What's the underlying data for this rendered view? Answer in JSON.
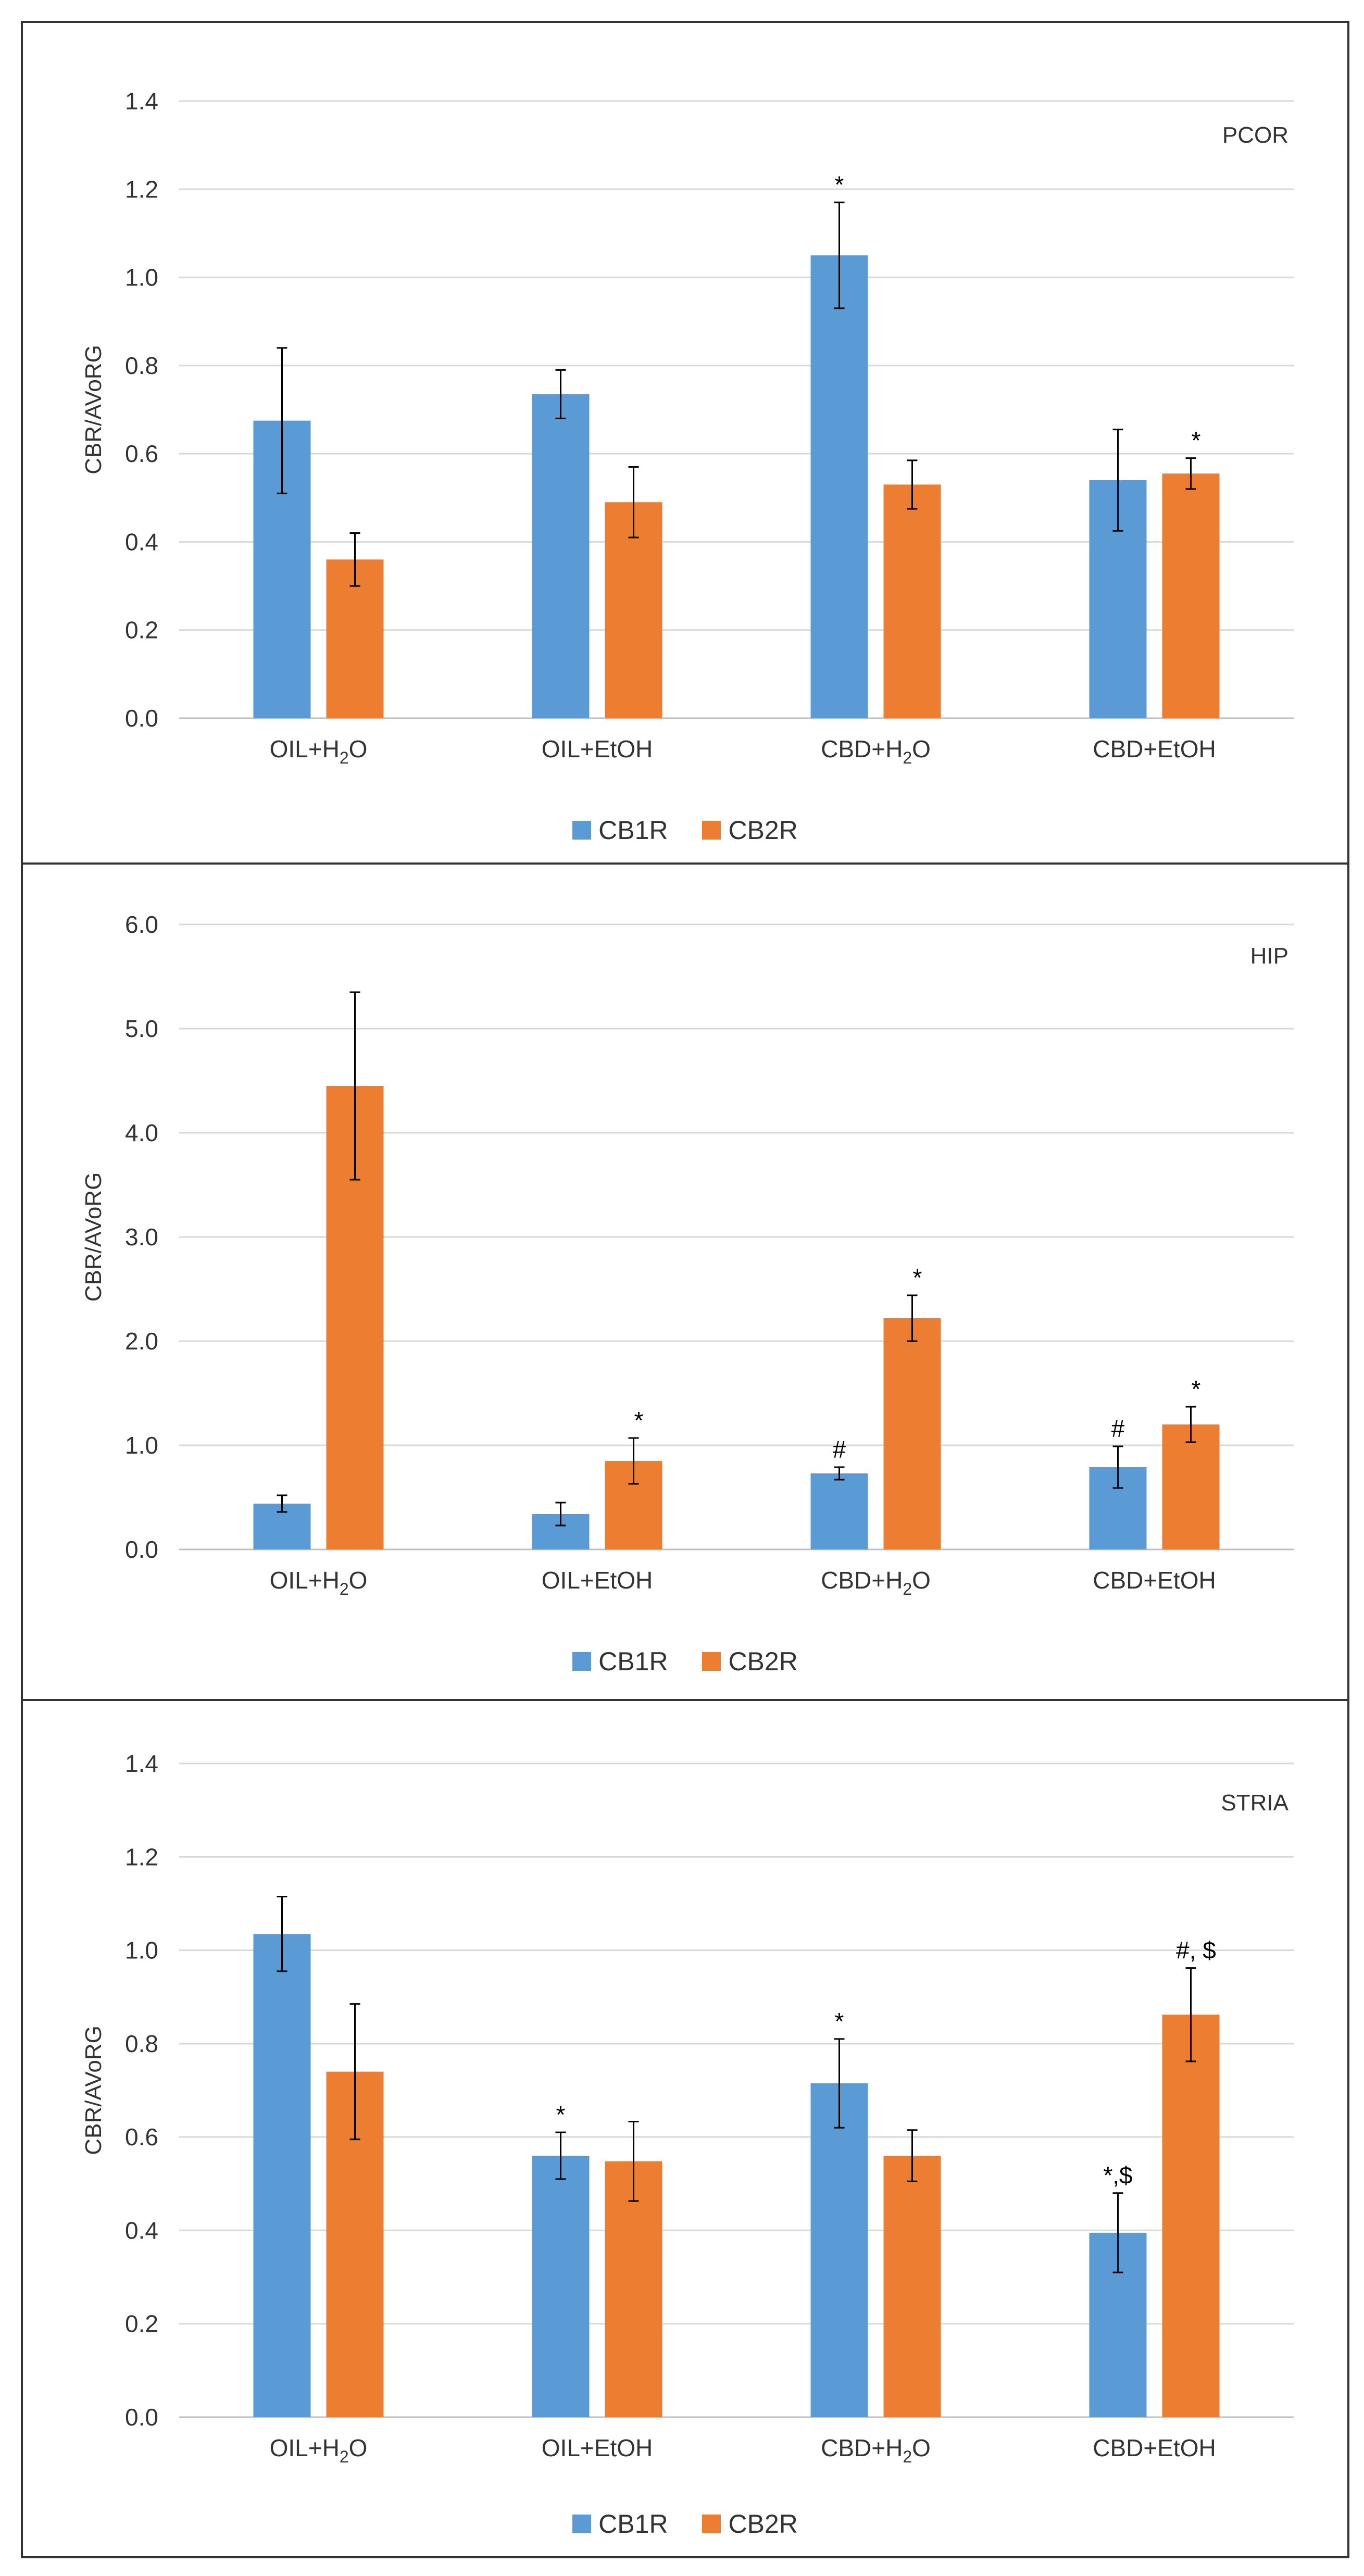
{
  "chart_data": [
    {
      "type": "bar",
      "title": "PCOR",
      "ylabel": "CBR/AVoRG",
      "xlabel": "",
      "ylim": [
        0,
        1.4
      ],
      "ytick_step": 0.2,
      "yticks": [
        "0.0",
        "0.2",
        "0.4",
        "0.6",
        "0.8",
        "1.0",
        "1.2",
        "1.4"
      ],
      "categories": [
        {
          "base": "OIL+H",
          "sub": "2",
          "tail": "O"
        },
        {
          "base": "OIL+EtOH",
          "sub": "",
          "tail": ""
        },
        {
          "base": "CBD+H",
          "sub": "2",
          "tail": "O"
        },
        {
          "base": "CBD+EtOH",
          "sub": "",
          "tail": ""
        }
      ],
      "series": [
        {
          "name": "CB1R",
          "color": "#5b9bd5",
          "values": [
            0.675,
            0.735,
            1.05,
            0.54
          ],
          "errors": [
            0.165,
            0.055,
            0.12,
            0.115
          ],
          "annotations": [
            "",
            "",
            "*",
            ""
          ]
        },
        {
          "name": "CB2R",
          "color": "#ed7d31",
          "values": [
            0.36,
            0.49,
            0.53,
            0.555
          ],
          "errors": [
            0.06,
            0.08,
            0.055,
            0.035
          ],
          "annotations": [
            "",
            "",
            "",
            "*"
          ]
        }
      ],
      "grid": true,
      "legend": "bottom"
    },
    {
      "type": "bar",
      "title": "HIP",
      "ylabel": "CBR/AVoRG",
      "xlabel": "",
      "ylim": [
        0,
        6.0
      ],
      "ytick_step": 1.0,
      "yticks": [
        "0.0",
        "1.0",
        "2.0",
        "3.0",
        "4.0",
        "5.0",
        "6.0"
      ],
      "categories": [
        {
          "base": "OIL+H",
          "sub": "2",
          "tail": "O"
        },
        {
          "base": "OIL+EtOH",
          "sub": "",
          "tail": ""
        },
        {
          "base": "CBD+H",
          "sub": "2",
          "tail": "O"
        },
        {
          "base": "CBD+EtOH",
          "sub": "",
          "tail": ""
        }
      ],
      "series": [
        {
          "name": "CB1R",
          "color": "#5b9bd5",
          "values": [
            0.44,
            0.34,
            0.73,
            0.79
          ],
          "errors": [
            0.08,
            0.11,
            0.06,
            0.2
          ],
          "annotations": [
            "",
            "",
            "#",
            "#"
          ]
        },
        {
          "name": "CB2R",
          "color": "#ed7d31",
          "values": [
            4.45,
            0.85,
            2.22,
            1.2
          ],
          "errors": [
            0.9,
            0.22,
            0.22,
            0.17
          ],
          "annotations": [
            "",
            "*",
            "*",
            "*"
          ]
        }
      ],
      "grid": true,
      "legend": "bottom"
    },
    {
      "type": "bar",
      "title": "STRIA",
      "ylabel": "CBR/AVoRG",
      "xlabel": "",
      "ylim": [
        0,
        1.4
      ],
      "ytick_step": 0.2,
      "yticks": [
        "0.0",
        "0.2",
        "0.4",
        "0.6",
        "0.8",
        "1.0",
        "1.2",
        "1.4"
      ],
      "categories": [
        {
          "base": "OIL+H",
          "sub": "2",
          "tail": "O"
        },
        {
          "base": "OIL+EtOH",
          "sub": "",
          "tail": ""
        },
        {
          "base": "CBD+H",
          "sub": "2",
          "tail": "O"
        },
        {
          "base": "CBD+EtOH",
          "sub": "",
          "tail": ""
        }
      ],
      "series": [
        {
          "name": "CB1R",
          "color": "#5b9bd5",
          "values": [
            1.035,
            0.56,
            0.715,
            0.395
          ],
          "errors": [
            0.08,
            0.05,
            0.095,
            0.085
          ],
          "annotations": [
            "",
            "*",
            "*",
            "*,$"
          ]
        },
        {
          "name": "CB2R",
          "color": "#ed7d31",
          "values": [
            0.74,
            0.548,
            0.56,
            0.862
          ],
          "errors": [
            0.145,
            0.085,
            0.055,
            0.1
          ],
          "annotations": [
            "",
            "",
            "",
            "#, $"
          ]
        }
      ],
      "grid": true,
      "legend": "bottom"
    }
  ]
}
